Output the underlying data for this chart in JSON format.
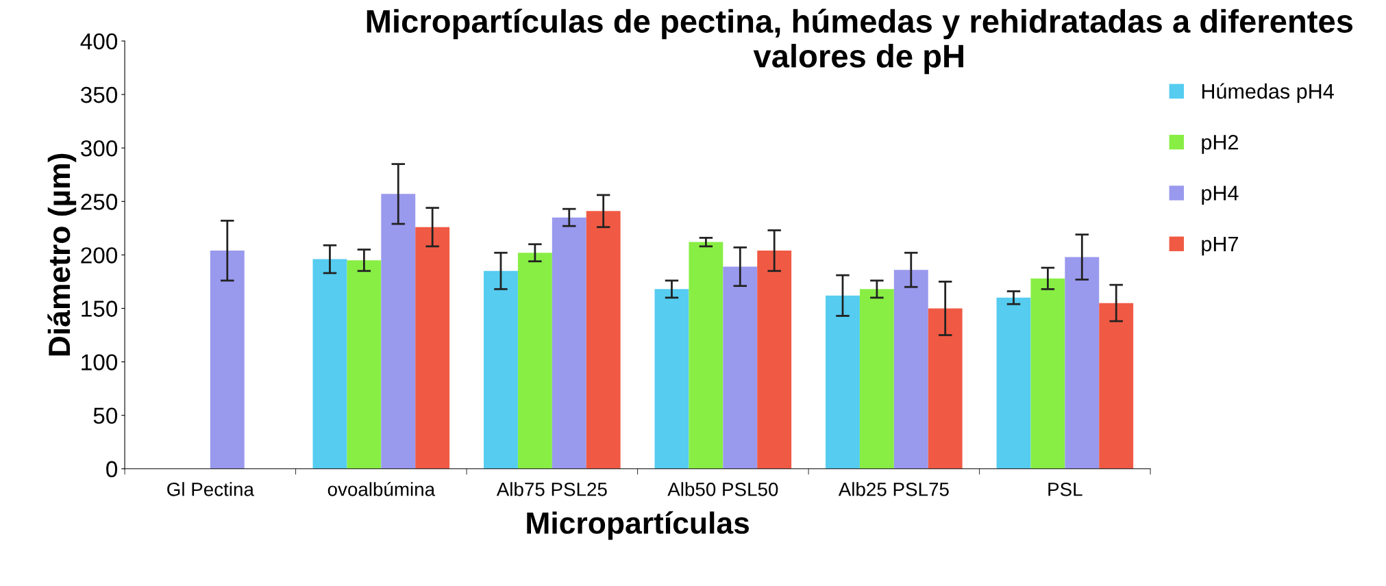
{
  "chart_data": {
    "type": "bar",
    "title": "Micropartículas de pectina, húmedas y rehidratadas a diferentes valores de pH",
    "xlabel": "Micropartículas",
    "ylabel": "Diámetro (µm)",
    "categories": [
      "Gl Pectina",
      "ovoalbúmina",
      "Alb75 PSL25",
      "Alb50 PSL50",
      "Alb25 PSL75",
      "PSL"
    ],
    "series": [
      {
        "name": "Húmedas pH4",
        "color": "#55ccf0",
        "values": [
          null,
          196,
          185,
          168,
          162,
          160
        ],
        "errors": [
          null,
          13,
          17,
          8,
          19,
          6
        ]
      },
      {
        "name": "pH2",
        "color": "#88ee44",
        "values": [
          null,
          195,
          202,
          212,
          168,
          178
        ],
        "errors": [
          null,
          10,
          8,
          4,
          8,
          10
        ]
      },
      {
        "name": "pH4",
        "color": "#9999ee",
        "values": [
          204,
          257,
          235,
          189,
          186,
          198
        ],
        "errors": [
          28,
          28,
          8,
          18,
          16,
          21
        ]
      },
      {
        "name": "pH7",
        "color": "#f05a44",
        "values": [
          null,
          226,
          241,
          204,
          150,
          155
        ],
        "errors": [
          null,
          18,
          15,
          19,
          25,
          17
        ]
      }
    ],
    "ylim": [
      0,
      400
    ],
    "yticks": [
      0,
      50,
      100,
      150,
      200,
      250,
      300,
      350,
      400
    ],
    "grid": false,
    "legend": "right"
  }
}
